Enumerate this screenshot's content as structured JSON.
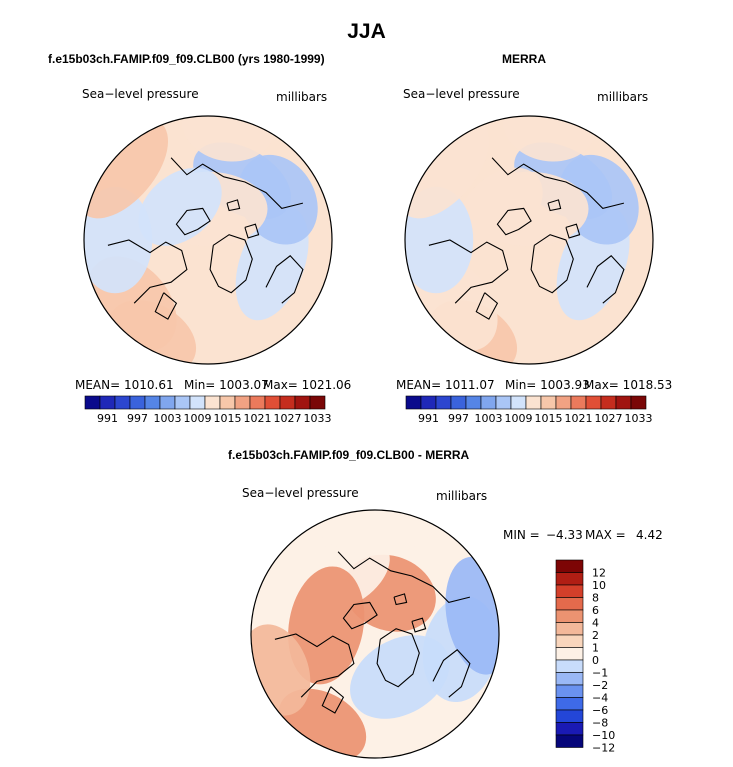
{
  "main_title": "JJA",
  "colors": {
    "palette_abs": [
      "#0a0a8c",
      "#1f28b8",
      "#2c46cf",
      "#3a63dc",
      "#5585e6",
      "#80a6ee",
      "#aac6f6",
      "#d2e3fb",
      "#fbe3d1",
      "#f7c7aa",
      "#f1a283",
      "#eb7a5c",
      "#e04f36",
      "#c52d1e",
      "#a01410",
      "#7a0707"
    ],
    "palette_diff": [
      "#06067a",
      "#1a1ab4",
      "#2346d8",
      "#3e6ae8",
      "#6a92f0",
      "#9ab8f6",
      "#c8dcfb",
      "#fdf1e6",
      "#f9d6bd",
      "#f3b89a",
      "#ec9371",
      "#e46a4c",
      "#d43f2a",
      "#b01e14",
      "#7d0505"
    ],
    "coast": "#000000"
  },
  "chart_data": [
    {
      "type": "heatmap",
      "title": "f.e15b03ch.FAMIP.f09_f09.CLB00 (yrs 1980-1999)",
      "variable": "Sea−level pressure",
      "units": "millibars",
      "projection": "north-polar-stereographic",
      "stats": {
        "mean": "MEAN= 1010.61",
        "min": "Min= 1003.07",
        "max": "Max= 1021.06"
      },
      "colorbar_ticks": [
        "991",
        "997",
        "1003",
        "1009",
        "1015",
        "1021",
        "1027",
        "1033"
      ],
      "levels": [
        988,
        991,
        994,
        997,
        1000,
        1003,
        1006,
        1009,
        1012,
        1015,
        1018,
        1021,
        1024,
        1027,
        1030,
        1033
      ],
      "field": [
        {
          "lon": 210,
          "r": 0.9,
          "value": 1017
        },
        {
          "lon": 230,
          "r": 0.8,
          "value": 1015
        },
        {
          "lon": 110,
          "r": 0.55,
          "value": 1009
        },
        {
          "lon": 60,
          "r": 0.65,
          "value": 1006
        },
        {
          "lon": 30,
          "r": 0.55,
          "value": 1008
        },
        {
          "lon": 0,
          "r": 0.25,
          "value": 1013
        },
        {
          "lon": 320,
          "r": 0.35,
          "value": 1010
        },
        {
          "lon": 270,
          "r": 0.75,
          "value": 1009
        },
        {
          "lon": 310,
          "r": 0.9,
          "value": 1016
        },
        {
          "lon": 10,
          "r": 0.95,
          "value": 1012
        }
      ]
    },
    {
      "type": "heatmap",
      "title": "MERRA",
      "variable": "Sea−level pressure",
      "units": "millibars",
      "projection": "north-polar-stereographic",
      "stats": {
        "mean": "MEAN= 1011.07",
        "min": "Min= 1003.93",
        "max": "Max= 1018.53"
      },
      "colorbar_ticks": [
        "991",
        "997",
        "1003",
        "1009",
        "1015",
        "1021",
        "1027",
        "1033"
      ],
      "levels": [
        988,
        991,
        994,
        997,
        1000,
        1003,
        1006,
        1009,
        1012,
        1015,
        1018,
        1021,
        1024,
        1027,
        1030,
        1033
      ],
      "field": [
        {
          "lon": 210,
          "r": 0.9,
          "value": 1016
        },
        {
          "lon": 230,
          "r": 0.8,
          "value": 1014
        },
        {
          "lon": 110,
          "r": 0.55,
          "value": 1010
        },
        {
          "lon": 60,
          "r": 0.65,
          "value": 1008
        },
        {
          "lon": 30,
          "r": 0.55,
          "value": 1008
        },
        {
          "lon": 0,
          "r": 0.25,
          "value": 1013
        },
        {
          "lon": 320,
          "r": 0.35,
          "value": 1013
        },
        {
          "lon": 270,
          "r": 0.75,
          "value": 1011
        },
        {
          "lon": 310,
          "r": 0.9,
          "value": 1013
        },
        {
          "lon": 10,
          "r": 0.95,
          "value": 1012
        }
      ]
    },
    {
      "type": "heatmap",
      "title": "f.e15b03ch.FAMIP.f09_f09.CLB00 - MERRA",
      "variable": "Sea−level pressure",
      "units": "millibars",
      "projection": "north-polar-stereographic",
      "stats": {
        "min_label": "MIN =",
        "min": "−4.33",
        "max_label": "MAX =",
        "max": "4.42"
      },
      "colorbar_ticks": [
        "12",
        "10",
        "8",
        "6",
        "4",
        "2",
        "1",
        "0",
        "−1",
        "−2",
        "−4",
        "−6",
        "−8",
        "−10",
        "−12"
      ],
      "levels": [
        -14,
        -12,
        -10,
        -8,
        -6,
        -4,
        -2,
        -1,
        0,
        1,
        2,
        4,
        6,
        8,
        10,
        12,
        14
      ],
      "field": [
        {
          "lon": 210,
          "r": 0.85,
          "value": 2
        },
        {
          "lon": 100,
          "r": 0.7,
          "value": -2
        },
        {
          "lon": 80,
          "r": 0.85,
          "value": -3
        },
        {
          "lon": 20,
          "r": 0.35,
          "value": 2
        },
        {
          "lon": 330,
          "r": 0.55,
          "value": -1
        },
        {
          "lon": 280,
          "r": 0.4,
          "value": 3
        },
        {
          "lon": 250,
          "r": 0.85,
          "value": 1
        },
        {
          "lon": 150,
          "r": 0.4,
          "value": -2
        },
        {
          "lon": 0,
          "r": 0.9,
          "value": -1
        }
      ]
    }
  ]
}
